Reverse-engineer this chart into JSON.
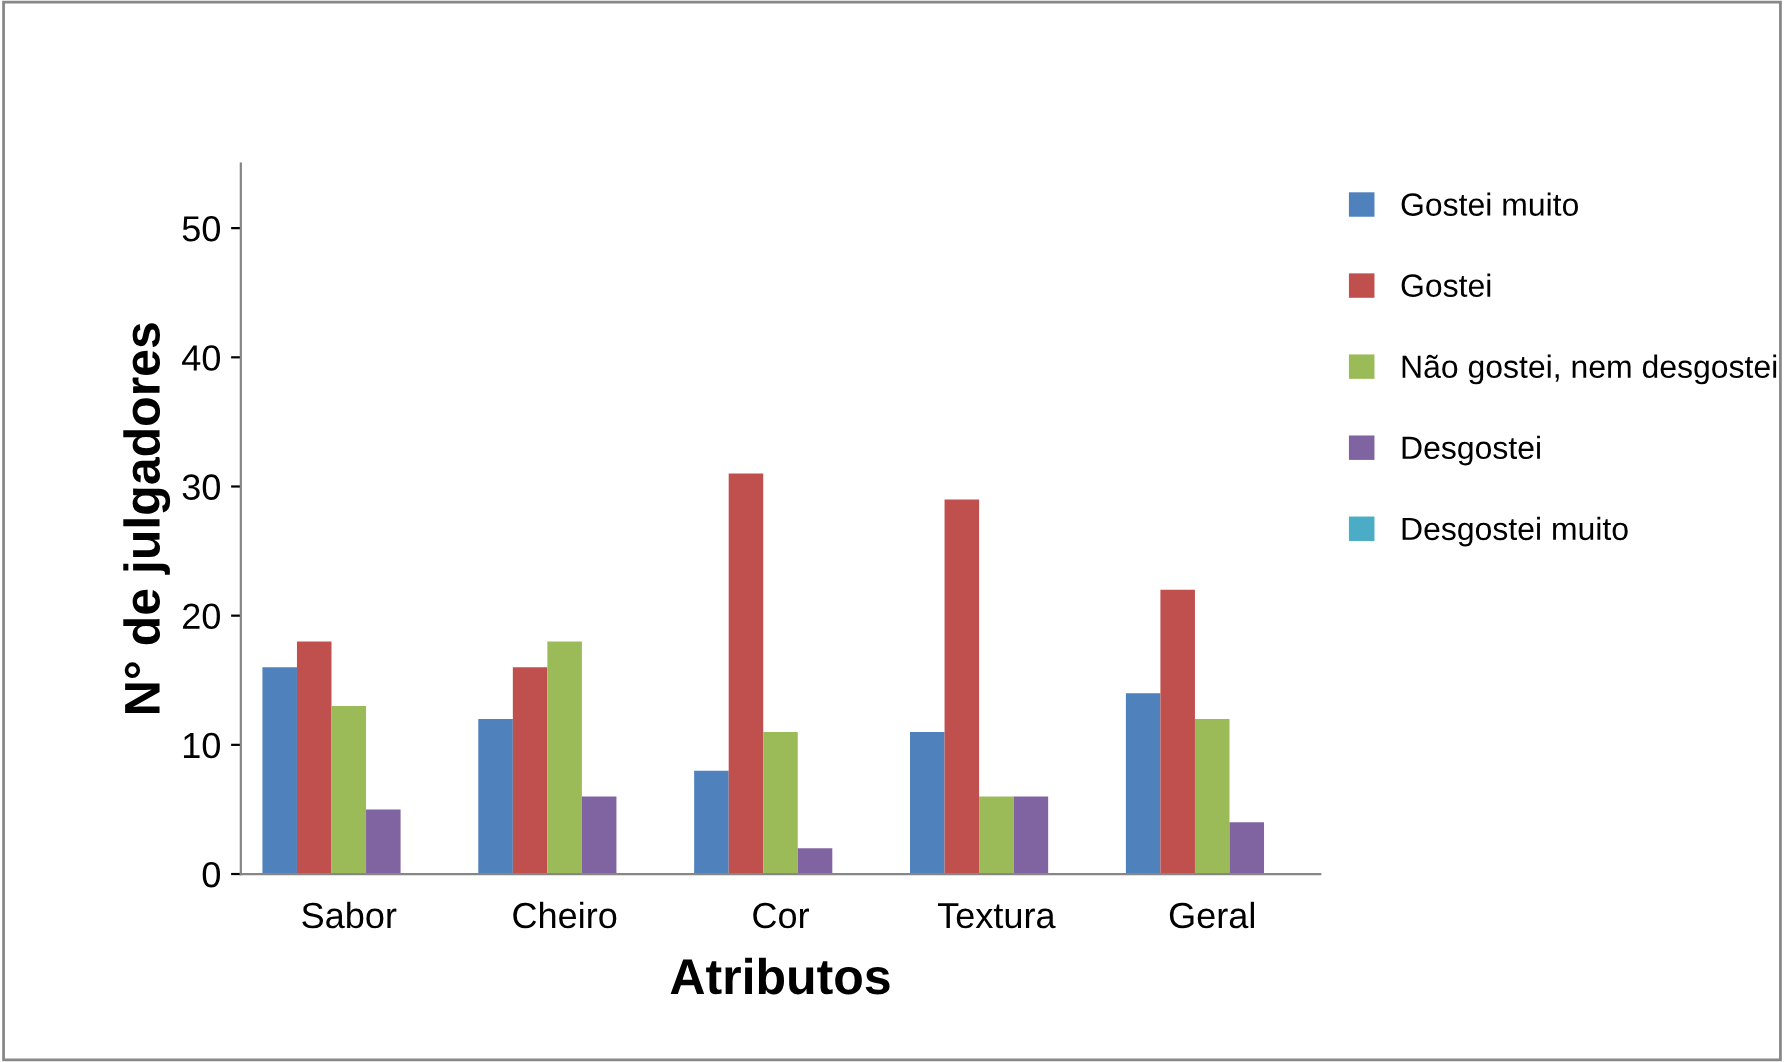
{
  "chart_data": {
    "type": "bar",
    "xlabel": "Atributos",
    "ylabel": "N° de julgadores",
    "categories": [
      "Sabor",
      "Cheiro",
      "Cor",
      "Textura",
      "Geral"
    ],
    "series": [
      {
        "name": "Gostei muito",
        "color": "#4f81bd",
        "values": [
          16,
          12,
          8,
          11,
          14
        ]
      },
      {
        "name": "Gostei",
        "color": "#c0504d",
        "values": [
          18,
          16,
          31,
          29,
          22
        ]
      },
      {
        "name": "Não gostei, nem desgostei",
        "color": "#9bbb59",
        "values": [
          13,
          18,
          11,
          6,
          12
        ]
      },
      {
        "name": "Desgostei",
        "color": "#8064a2",
        "values": [
          5,
          6,
          2,
          6,
          4
        ]
      },
      {
        "name": "Desgostei muito",
        "color": "#4bacc6",
        "values": [
          0,
          0,
          0,
          0,
          0
        ]
      }
    ],
    "ylim": [
      0,
      55
    ],
    "yticks": [
      0,
      10,
      20,
      30,
      40,
      50
    ],
    "grid": false,
    "legend": "right"
  }
}
